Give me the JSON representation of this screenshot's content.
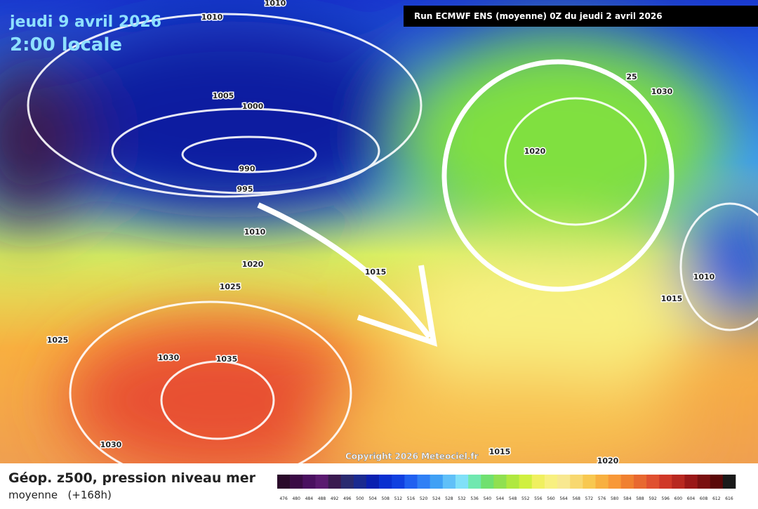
{
  "header": {
    "date": "jeudi 9 avril 2026",
    "time": "2:00 locale",
    "run": "Run ECMWF ENS (moyenne) 0Z du jeudi 2 avril 2026"
  },
  "copyright": "Copyright 2026 Meteociel.fr",
  "isobar_labels": [
    "1010",
    "1010",
    "1005",
    "1000",
    "990",
    "995",
    "1010",
    "1020",
    "1025",
    "1025",
    "1030",
    "1035",
    "1030",
    "1015",
    "1020",
    "25",
    "1030",
    "1010",
    "1015",
    "1015",
    "1020"
  ],
  "legend": {
    "title": "Géop. z500, pression niveau mer",
    "subtitle": "moyenne   (+168h)",
    "labels": [
      476,
      480,
      484,
      488,
      492,
      496,
      500,
      504,
      508,
      512,
      516,
      520,
      524,
      528,
      532,
      536,
      540,
      544,
      548,
      552,
      556,
      560,
      564,
      568,
      572,
      576,
      580,
      584,
      588,
      592,
      596,
      600,
      604,
      608,
      612,
      616
    ],
    "colors": [
      "#2a0a2a",
      "#3a0a45",
      "#4a1060",
      "#5a1a70",
      "#3a1a50",
      "#2a2a70",
      "#1a2a90",
      "#0a20b0",
      "#0a30d0",
      "#1040e0",
      "#2060f0",
      "#3080f5",
      "#40a0f5",
      "#60c0f8",
      "#80e0f8",
      "#70e8b0",
      "#70e070",
      "#90e050",
      "#b0e840",
      "#d0f040",
      "#f0f060",
      "#f8f080",
      "#f8e890",
      "#f8d870",
      "#f8c850",
      "#f8b040",
      "#f89838",
      "#f08030",
      "#e86830",
      "#e05030",
      "#d03828",
      "#b82820",
      "#9a1818",
      "#7a1010",
      "#5a0808",
      "#1a1a1a"
    ]
  }
}
